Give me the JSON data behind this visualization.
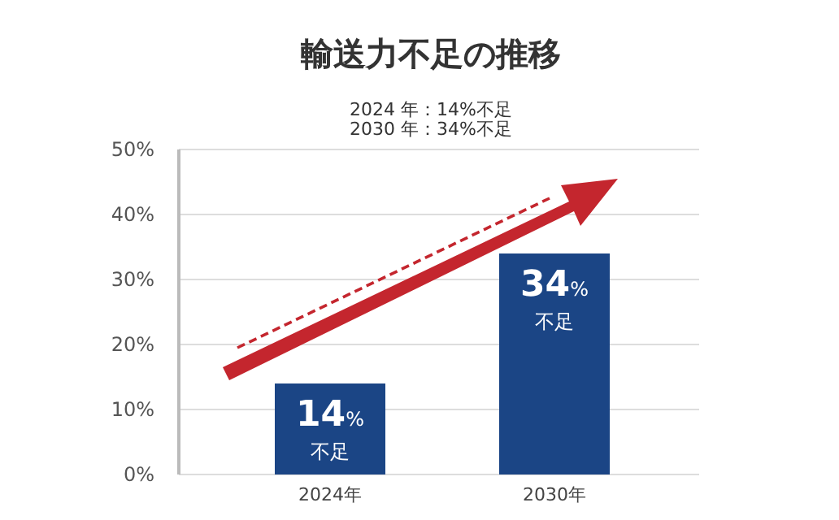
{
  "chart_data": {
    "type": "bar",
    "title": "輸送力不足の推移",
    "subtitle": "2024 年：14%不足\n2030 年：34%不足",
    "categories": [
      "2024年",
      "2030年"
    ],
    "values": [
      14,
      34
    ],
    "color": "#1b4585",
    "value_labels": [
      "14%\n不足",
      "34%\n不足"
    ],
    "ylim": [
      0,
      50
    ],
    "yticks": [
      {
        "value": 0,
        "label": "0%"
      },
      {
        "value": 10,
        "label": "10%"
      },
      {
        "value": 20,
        "label": "20%"
      },
      {
        "value": 30,
        "label": "30%"
      },
      {
        "value": 40,
        "label": "40%"
      },
      {
        "value": 50,
        "label": "50%"
      }
    ],
    "grid": "y"
  }
}
